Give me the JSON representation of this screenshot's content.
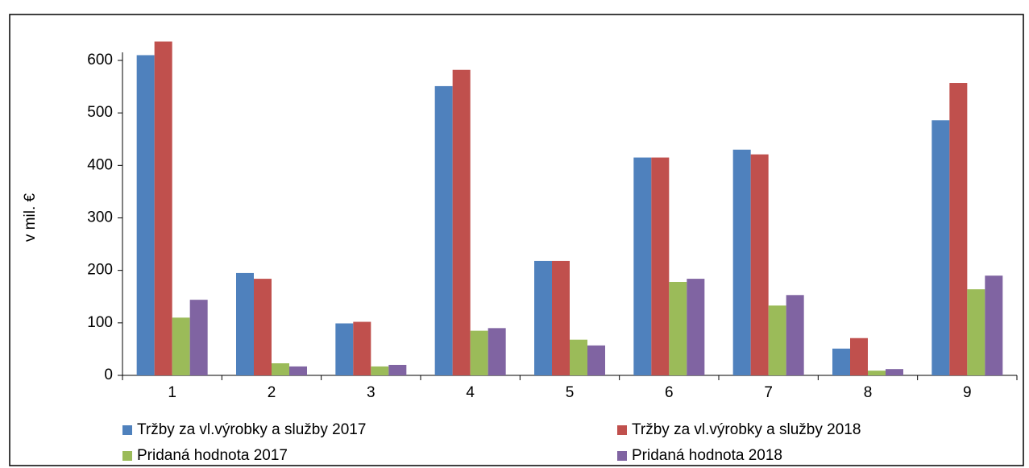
{
  "chart_data": {
    "type": "bar",
    "y_label": "v mil. €",
    "categories": [
      "1",
      "2",
      "3",
      "4",
      "5",
      "6",
      "7",
      "8",
      "9"
    ],
    "series": [
      {
        "name": "Tržby za vl.výrobky a služby 2017",
        "color": "#4f81bd",
        "values": [
          610,
          195,
          99,
          551,
          218,
          415,
          430,
          51,
          486
        ]
      },
      {
        "name": "Tržby za vl.výrobky a služby 2018",
        "color": "#c0504d",
        "values": [
          636,
          184,
          102,
          582,
          218,
          415,
          421,
          71,
          557
        ]
      },
      {
        "name": "Pridaná hodnota 2017",
        "color": "#9bbb59",
        "values": [
          110,
          23,
          17,
          85,
          68,
          178,
          133,
          9,
          164
        ]
      },
      {
        "name": "Pridaná hodnota 2018",
        "color": "#8064a2",
        "values": [
          144,
          17,
          20,
          90,
          57,
          184,
          153,
          12,
          190
        ]
      }
    ],
    "ylim": [
      0,
      600
    ],
    "yticks": [
      0,
      100,
      200,
      300,
      400,
      500,
      600
    ],
    "grid": false
  }
}
